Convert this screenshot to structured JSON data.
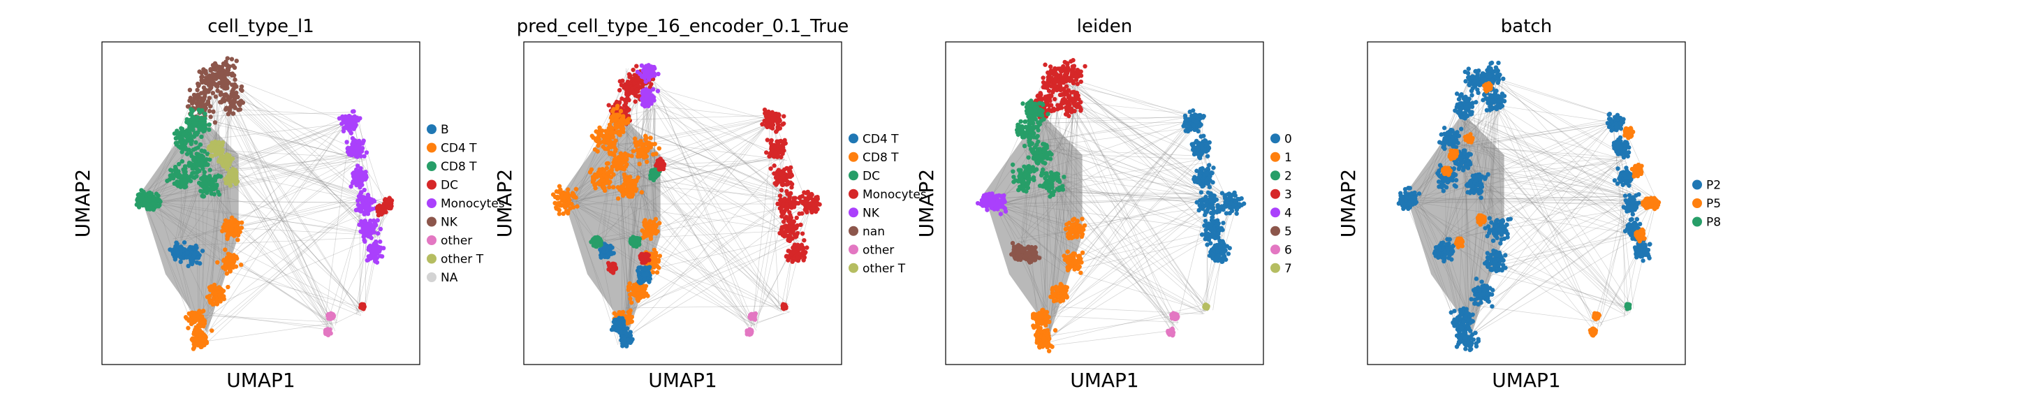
{
  "chart_data": [
    {
      "type": "scatter",
      "title": "cell_type_l1",
      "xlabel": "UMAP1",
      "ylabel": "UMAP2",
      "grid": false,
      "legend_placement": "right",
      "legend": [
        {
          "name": "B",
          "color": "#1f77b4"
        },
        {
          "name": "CD4 T",
          "color": "#ff7f0e"
        },
        {
          "name": "CD8 T",
          "color": "#279e68"
        },
        {
          "name": "DC",
          "color": "#d62728"
        },
        {
          "name": "Monocytes",
          "color": "#aa40fc"
        },
        {
          "name": "NK",
          "color": "#8c564b"
        },
        {
          "name": "other",
          "color": "#e377c2"
        },
        {
          "name": "other T",
          "color": "#b5bd61"
        },
        {
          "name": "NA",
          "color": "#d3d3d3"
        }
      ],
      "clusters": [
        {
          "color": "#8c564b",
          "pts": [
            [
              0.34,
              0.12
            ],
            [
              0.31,
              0.2
            ],
            [
              0.39,
              0.1
            ],
            [
              0.41,
              0.18
            ]
          ],
          "s": 0.06
        },
        {
          "color": "#279e68",
          "pts": [
            [
              0.26,
              0.3
            ],
            [
              0.3,
              0.37
            ],
            [
              0.25,
              0.42
            ],
            [
              0.34,
              0.44
            ],
            [
              0.3,
              0.25
            ]
          ],
          "s": 0.05
        },
        {
          "color": "#b5bd61",
          "pts": [
            [
              0.39,
              0.37
            ],
            [
              0.41,
              0.42
            ],
            [
              0.36,
              0.33
            ]
          ],
          "s": 0.03
        },
        {
          "color": "#279e68",
          "pts": [
            [
              0.13,
              0.49
            ],
            [
              0.16,
              0.5
            ]
          ],
          "s": 0.035
        },
        {
          "color": "#1f77b4",
          "pts": [
            [
              0.24,
              0.65
            ],
            [
              0.29,
              0.66
            ]
          ],
          "s": 0.035
        },
        {
          "color": "#ff7f0e",
          "pts": [
            [
              0.41,
              0.58
            ],
            [
              0.4,
              0.68
            ],
            [
              0.36,
              0.78
            ],
            [
              0.3,
              0.86
            ],
            [
              0.31,
              0.92
            ]
          ],
          "s": 0.04
        },
        {
          "color": "#aa40fc",
          "pts": [
            [
              0.78,
              0.25
            ],
            [
              0.8,
              0.33
            ],
            [
              0.81,
              0.42
            ],
            [
              0.83,
              0.5
            ],
            [
              0.84,
              0.58
            ],
            [
              0.86,
              0.65
            ]
          ],
          "s": 0.04
        },
        {
          "color": "#d62728",
          "pts": [
            [
              0.9,
              0.5
            ],
            [
              0.88,
              0.52
            ]
          ],
          "s": 0.018
        },
        {
          "color": "#e377c2",
          "pts": [
            [
              0.72,
              0.85
            ],
            [
              0.71,
              0.9
            ]
          ],
          "s": 0.012
        },
        {
          "color": "#d62728",
          "pts": [
            [
              0.82,
              0.82
            ]
          ],
          "s": 0.008
        }
      ]
    },
    {
      "type": "scatter",
      "title": "pred_cell_type_16_encoder_0.1_True",
      "xlabel": "UMAP1",
      "ylabel": "UMAP2",
      "grid": false,
      "legend_placement": "right",
      "legend": [
        {
          "name": "CD4 T",
          "color": "#1f77b4"
        },
        {
          "name": "CD8 T",
          "color": "#ff7f0e"
        },
        {
          "name": "DC",
          "color": "#279e68"
        },
        {
          "name": "Monocytes",
          "color": "#d62728"
        },
        {
          "name": "NK",
          "color": "#aa40fc"
        },
        {
          "name": "nan",
          "color": "#8c564b"
        },
        {
          "name": "other",
          "color": "#e377c2"
        },
        {
          "name": "other T",
          "color": "#b5bd61"
        }
      ],
      "clusters": [
        {
          "color": "#d62728",
          "pts": [
            [
              0.34,
              0.14
            ],
            [
              0.31,
              0.22
            ],
            [
              0.37,
              0.12
            ]
          ],
          "s": 0.05
        },
        {
          "color": "#aa40fc",
          "pts": [
            [
              0.39,
              0.09
            ],
            [
              0.39,
              0.17
            ]
          ],
          "s": 0.035
        },
        {
          "color": "#ff7f0e",
          "pts": [
            [
              0.26,
              0.3
            ],
            [
              0.3,
              0.37
            ],
            [
              0.25,
              0.42
            ],
            [
              0.33,
              0.45
            ],
            [
              0.3,
              0.25
            ],
            [
              0.13,
              0.49
            ],
            [
              0.38,
              0.33
            ]
          ],
          "s": 0.05
        },
        {
          "color": "#ff7f0e",
          "pts": [
            [
              0.4,
              0.58
            ],
            [
              0.4,
              0.68
            ],
            [
              0.36,
              0.77
            ],
            [
              0.31,
              0.86
            ]
          ],
          "s": 0.04
        },
        {
          "color": "#1f77b4",
          "pts": [
            [
              0.3,
              0.88
            ],
            [
              0.32,
              0.92
            ],
            [
              0.38,
              0.72
            ],
            [
              0.26,
              0.65
            ]
          ],
          "s": 0.03
        },
        {
          "color": "#279e68",
          "pts": [
            [
              0.41,
              0.41
            ],
            [
              0.23,
              0.62
            ],
            [
              0.35,
              0.62
            ]
          ],
          "s": 0.02
        },
        {
          "color": "#d62728",
          "pts": [
            [
              0.43,
              0.38
            ],
            [
              0.28,
              0.7
            ],
            [
              0.38,
              0.67
            ]
          ],
          "s": 0.018
        },
        {
          "color": "#d62728",
          "pts": [
            [
              0.78,
              0.25
            ],
            [
              0.8,
              0.33
            ],
            [
              0.81,
              0.42
            ],
            [
              0.83,
              0.5
            ],
            [
              0.84,
              0.58
            ],
            [
              0.86,
              0.65
            ],
            [
              0.9,
              0.5
            ]
          ],
          "s": 0.045
        },
        {
          "color": "#e377c2",
          "pts": [
            [
              0.72,
              0.85
            ],
            [
              0.71,
              0.9
            ]
          ],
          "s": 0.012
        },
        {
          "color": "#d62728",
          "pts": [
            [
              0.82,
              0.82
            ]
          ],
          "s": 0.008
        }
      ]
    },
    {
      "type": "scatter",
      "title": "leiden",
      "xlabel": "UMAP1",
      "ylabel": "UMAP2",
      "grid": false,
      "legend_placement": "right",
      "legend": [
        {
          "name": "0",
          "color": "#1f77b4"
        },
        {
          "name": "1",
          "color": "#ff7f0e"
        },
        {
          "name": "2",
          "color": "#279e68"
        },
        {
          "name": "3",
          "color": "#d62728"
        },
        {
          "name": "4",
          "color": "#aa40fc"
        },
        {
          "name": "5",
          "color": "#8c564b"
        },
        {
          "name": "6",
          "color": "#e377c2"
        },
        {
          "name": "7",
          "color": "#b5bd61"
        }
      ],
      "clusters": [
        {
          "color": "#d62728",
          "pts": [
            [
              0.34,
              0.12
            ],
            [
              0.31,
              0.2
            ],
            [
              0.39,
              0.1
            ],
            [
              0.39,
              0.19
            ]
          ],
          "s": 0.055
        },
        {
          "color": "#279e68",
          "pts": [
            [
              0.26,
              0.28
            ],
            [
              0.3,
              0.35
            ],
            [
              0.25,
              0.42
            ],
            [
              0.33,
              0.44
            ],
            [
              0.28,
              0.22
            ]
          ],
          "s": 0.05
        },
        {
          "color": "#aa40fc",
          "pts": [
            [
              0.13,
              0.49
            ],
            [
              0.16,
              0.5
            ]
          ],
          "s": 0.035
        },
        {
          "color": "#8c564b",
          "pts": [
            [
              0.23,
              0.65
            ],
            [
              0.27,
              0.66
            ]
          ],
          "s": 0.03
        },
        {
          "color": "#ff7f0e",
          "pts": [
            [
              0.41,
              0.58
            ],
            [
              0.4,
              0.68
            ],
            [
              0.36,
              0.78
            ],
            [
              0.3,
              0.86
            ],
            [
              0.31,
              0.92
            ]
          ],
          "s": 0.04
        },
        {
          "color": "#1f77b4",
          "pts": [
            [
              0.78,
              0.25
            ],
            [
              0.8,
              0.33
            ],
            [
              0.81,
              0.42
            ],
            [
              0.83,
              0.5
            ],
            [
              0.84,
              0.58
            ],
            [
              0.86,
              0.65
            ],
            [
              0.9,
              0.5
            ]
          ],
          "s": 0.045
        },
        {
          "color": "#e377c2",
          "pts": [
            [
              0.72,
              0.85
            ],
            [
              0.71,
              0.9
            ]
          ],
          "s": 0.012
        },
        {
          "color": "#b5bd61",
          "pts": [
            [
              0.82,
              0.82
            ]
          ],
          "s": 0.008
        }
      ]
    },
    {
      "type": "scatter",
      "title": "batch",
      "xlabel": "UMAP1",
      "ylabel": "UMAP2",
      "grid": false,
      "legend_placement": "right",
      "legend": [
        {
          "name": "P2",
          "color": "#1f77b4"
        },
        {
          "name": "P5",
          "color": "#ff7f0e"
        },
        {
          "name": "P8",
          "color": "#279e68"
        }
      ],
      "clusters": [
        {
          "color": "#1f77b4",
          "pts": [
            [
              0.34,
              0.12
            ],
            [
              0.31,
              0.2
            ],
            [
              0.39,
              0.1
            ],
            [
              0.4,
              0.18
            ],
            [
              0.26,
              0.3
            ],
            [
              0.3,
              0.37
            ],
            [
              0.25,
              0.42
            ],
            [
              0.34,
              0.44
            ],
            [
              0.13,
              0.49
            ],
            [
              0.24,
              0.65
            ],
            [
              0.41,
              0.58
            ],
            [
              0.4,
              0.68
            ],
            [
              0.36,
              0.78
            ],
            [
              0.3,
              0.86
            ],
            [
              0.31,
              0.92
            ]
          ],
          "s": 0.045
        },
        {
          "color": "#ff7f0e",
          "pts": [
            [
              0.25,
              0.4
            ],
            [
              0.32,
              0.3
            ],
            [
              0.29,
              0.62
            ],
            [
              0.36,
              0.55
            ],
            [
              0.38,
              0.14
            ],
            [
              0.27,
              0.35
            ]
          ],
          "s": 0.015
        },
        {
          "color": "#1f77b4",
          "pts": [
            [
              0.78,
              0.25
            ],
            [
              0.8,
              0.33
            ],
            [
              0.81,
              0.42
            ],
            [
              0.83,
              0.5
            ],
            [
              0.84,
              0.58
            ],
            [
              0.86,
              0.65
            ]
          ],
          "s": 0.035
        },
        {
          "color": "#ff7f0e",
          "pts": [
            [
              0.82,
              0.28
            ],
            [
              0.85,
              0.4
            ],
            [
              0.88,
              0.5
            ],
            [
              0.86,
              0.6
            ],
            [
              0.9,
              0.5
            ]
          ],
          "s": 0.02
        },
        {
          "color": "#ff7f0e",
          "pts": [
            [
              0.72,
              0.85
            ],
            [
              0.71,
              0.9
            ]
          ],
          "s": 0.012
        },
        {
          "color": "#279e68",
          "pts": [
            [
              0.82,
              0.82
            ]
          ],
          "s": 0.008
        }
      ]
    }
  ]
}
